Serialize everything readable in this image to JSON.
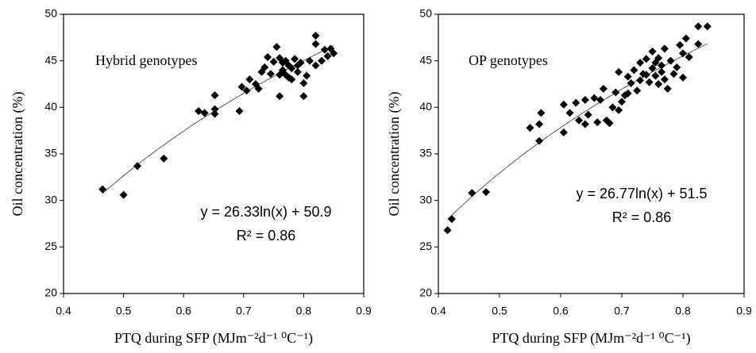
{
  "chart_data": [
    {
      "type": "scatter",
      "annotation": "Hybrid genotypes",
      "equation": "y = 26.33ln(x) + 50.9",
      "r2": "R² = 0.86",
      "x_label": "PTQ during SFP (MJm⁻²d⁻¹ ⁰C⁻¹)",
      "y_label": "Oil concentration (%)",
      "color": "#000000",
      "trendline": {
        "coef": 26.33,
        "intercept": 50.9
      },
      "xlim": [
        0.4,
        0.9
      ],
      "ylim": [
        20,
        50
      ],
      "xticks": [
        0.4,
        0.5,
        0.6,
        0.7,
        0.8,
        0.9
      ],
      "yticks": [
        20,
        25,
        30,
        35,
        40,
        45,
        50
      ],
      "x": [
        0.465,
        0.5,
        0.523,
        0.567,
        0.625,
        0.635,
        0.652,
        0.652,
        0.652,
        0.693,
        0.697,
        0.705,
        0.71,
        0.72,
        0.725,
        0.73,
        0.735,
        0.74,
        0.745,
        0.75,
        0.755,
        0.76,
        0.76,
        0.765,
        0.77,
        0.77,
        0.775,
        0.78,
        0.78,
        0.785,
        0.79,
        0.795,
        0.8,
        0.8,
        0.805,
        0.81,
        0.82,
        0.82,
        0.82,
        0.83,
        0.835,
        0.84,
        0.845,
        0.85,
        0.765,
        0.775,
        0.79,
        0.76
      ],
      "values": [
        31.2,
        30.6,
        33.7,
        34.5,
        39.6,
        39.4,
        39.3,
        39.8,
        41.3,
        39.6,
        42.2,
        41.8,
        43.0,
        42.5,
        42.0,
        43.8,
        44.3,
        45.4,
        43.6,
        44.9,
        46.5,
        41.2,
        45.3,
        44.0,
        43.5,
        45.0,
        44.5,
        43.0,
        44.2,
        45.2,
        43.8,
        44.8,
        42.6,
        41.2,
        43.4,
        45.0,
        44.5,
        47.7,
        46.8,
        45.0,
        46.2,
        45.5,
        46.3,
        45.8,
        44.8,
        43.2,
        44.5,
        43.5
      ]
    },
    {
      "type": "scatter",
      "annotation": "OP genotypes",
      "equation": "y = 26.77ln(x) + 51.5",
      "r2": "R² = 0.86",
      "x_label": "PTQ during SFP (MJm⁻²d⁻¹ ⁰C⁻¹)",
      "y_label": "Oil concentration (%)",
      "color": "#000000",
      "trendline": {
        "coef": 26.77,
        "intercept": 51.5
      },
      "xlim": [
        0.4,
        0.9
      ],
      "ylim": [
        20,
        50
      ],
      "xticks": [
        0.4,
        0.5,
        0.6,
        0.7,
        0.8,
        0.9
      ],
      "yticks": [
        20,
        25,
        30,
        35,
        40,
        45,
        50
      ],
      "x": [
        0.415,
        0.422,
        0.455,
        0.478,
        0.55,
        0.565,
        0.565,
        0.568,
        0.605,
        0.605,
        0.615,
        0.625,
        0.63,
        0.64,
        0.64,
        0.645,
        0.655,
        0.66,
        0.665,
        0.67,
        0.675,
        0.68,
        0.685,
        0.69,
        0.695,
        0.695,
        0.7,
        0.705,
        0.71,
        0.715,
        0.72,
        0.725,
        0.73,
        0.73,
        0.735,
        0.74,
        0.745,
        0.75,
        0.75,
        0.755,
        0.76,
        0.76,
        0.765,
        0.77,
        0.77,
        0.775,
        0.78,
        0.785,
        0.79,
        0.795,
        0.8,
        0.8,
        0.805,
        0.81,
        0.825,
        0.825,
        0.84,
        0.755,
        0.765,
        0.71,
        0.74
      ],
      "values": [
        26.8,
        28.0,
        30.8,
        30.9,
        37.8,
        36.4,
        38.2,
        39.4,
        37.3,
        40.3,
        39.4,
        40.5,
        38.6,
        40.8,
        38.2,
        39.2,
        41.0,
        38.4,
        40.8,
        42.0,
        38.6,
        38.3,
        40.0,
        41.6,
        43.8,
        39.7,
        40.6,
        41.3,
        43.3,
        42.6,
        44.0,
        41.8,
        42.9,
        44.8,
        43.6,
        45.2,
        42.7,
        44.2,
        46.0,
        43.4,
        45.3,
        42.5,
        44.5,
        43.0,
        46.3,
        42.0,
        45.0,
        43.6,
        44.3,
        46.7,
        45.8,
        43.2,
        47.4,
        45.4,
        46.8,
        48.7,
        48.7,
        44.8,
        43.8,
        41.5,
        43.5
      ]
    }
  ]
}
